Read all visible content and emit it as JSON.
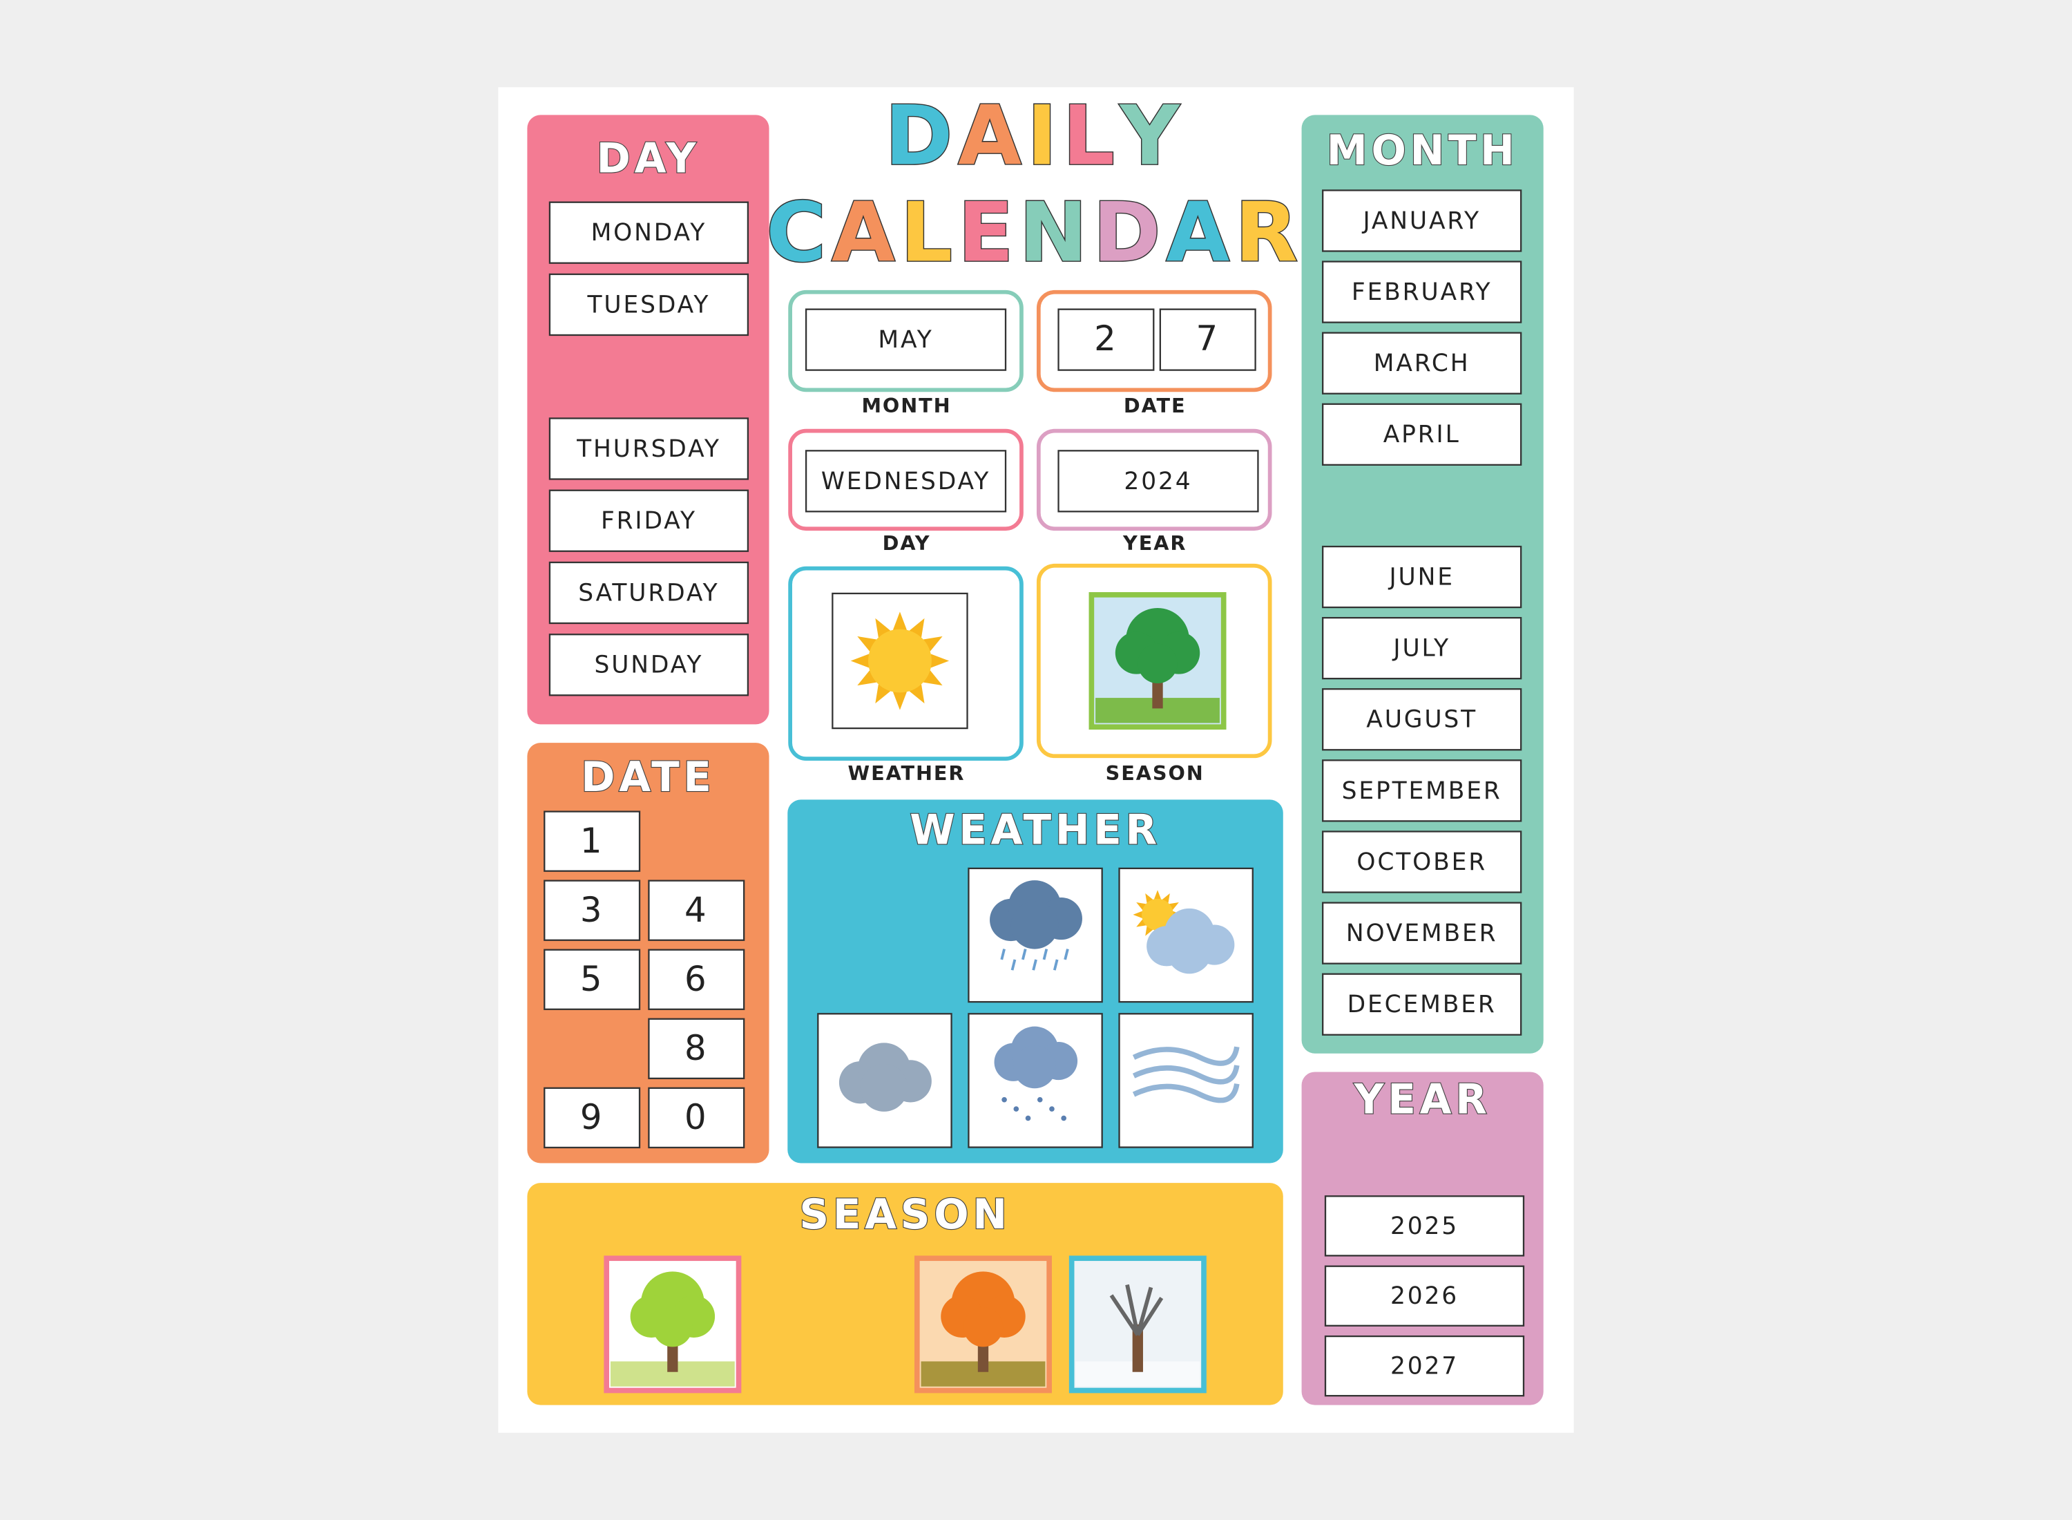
{
  "title": {
    "line1": "DAILY",
    "line2": "CALENDAR"
  },
  "day_panel": {
    "heading": "DAY",
    "items": [
      "MONDAY",
      "TUESDAY",
      "THURSDAY",
      "FRIDAY",
      "SATURDAY",
      "SUNDAY"
    ]
  },
  "month_panel": {
    "heading": "MONTH",
    "items": [
      "JANUARY",
      "FEBRUARY",
      "MARCH",
      "APRIL",
      "JUNE",
      "JULY",
      "AUGUST",
      "SEPTEMBER",
      "OCTOBER",
      "NOVEMBER",
      "DECEMBER"
    ]
  },
  "date_panel": {
    "heading": "DATE",
    "items": [
      "1",
      "3",
      "4",
      "5",
      "6",
      "8",
      "9",
      "0"
    ]
  },
  "year_panel": {
    "heading": "YEAR",
    "items": [
      "2025",
      "2026",
      "2027"
    ]
  },
  "weather_panel": {
    "heading": "WEATHER"
  },
  "season_panel": {
    "heading": "SEASON"
  },
  "display": {
    "month": {
      "value": "MAY",
      "label": "MONTH"
    },
    "date": {
      "digits": [
        "2",
        "7"
      ],
      "label": "DATE"
    },
    "day": {
      "value": "WEDNESDAY",
      "label": "DAY"
    },
    "year": {
      "value": "2024",
      "label": "YEAR"
    },
    "weather": {
      "label": "WEATHER"
    },
    "season": {
      "label": "SEASON"
    }
  }
}
